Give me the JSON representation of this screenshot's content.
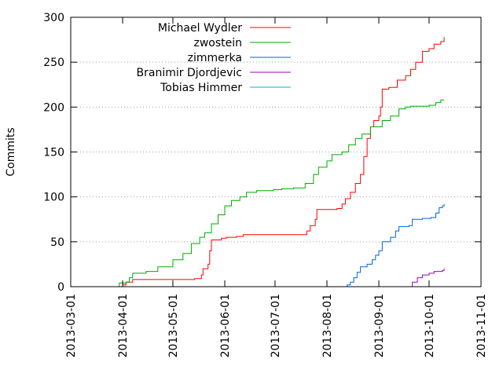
{
  "chart_data": {
    "type": "line",
    "ylabel": "Commits",
    "ylim": [
      0,
      300
    ],
    "yticks": [
      0,
      50,
      100,
      150,
      200,
      250,
      300
    ],
    "xlim": [
      "2013-03-01",
      "2013-11-01"
    ],
    "xticks": [
      "2013-03-01",
      "2013-04-01",
      "2013-05-01",
      "2013-06-01",
      "2013-07-01",
      "2013-08-01",
      "2013-09-01",
      "2013-10-01",
      "2013-11-01"
    ],
    "grid": "horizontal dotted",
    "legend_position": "top-left",
    "series": [
      {
        "name": "Michael Wydler",
        "color": "#ff0000",
        "points": [
          [
            "2013-03-31",
            0
          ],
          [
            "2013-04-01",
            2
          ],
          [
            "2013-04-03",
            5
          ],
          [
            "2013-04-07",
            8
          ],
          [
            "2013-05-02",
            8
          ],
          [
            "2013-05-14",
            9
          ],
          [
            "2013-05-18",
            13
          ],
          [
            "2013-05-19",
            20
          ],
          [
            "2013-05-22",
            25
          ],
          [
            "2013-05-23",
            40
          ],
          [
            "2013-05-24",
            52
          ],
          [
            "2013-05-30",
            54
          ],
          [
            "2013-06-02",
            55
          ],
          [
            "2013-06-08",
            56
          ],
          [
            "2013-06-12",
            58
          ],
          [
            "2013-07-18",
            58
          ],
          [
            "2013-07-20",
            62
          ],
          [
            "2013-07-22",
            68
          ],
          [
            "2013-07-25",
            75
          ],
          [
            "2013-07-26",
            86
          ],
          [
            "2013-08-07",
            87
          ],
          [
            "2013-08-10",
            92
          ],
          [
            "2013-08-12",
            98
          ],
          [
            "2013-08-15",
            105
          ],
          [
            "2013-08-18",
            115
          ],
          [
            "2013-08-21",
            125
          ],
          [
            "2013-08-23",
            145
          ],
          [
            "2013-08-25",
            165
          ],
          [
            "2013-08-27",
            178
          ],
          [
            "2013-08-29",
            185
          ],
          [
            "2013-09-01",
            190
          ],
          [
            "2013-09-02",
            200
          ],
          [
            "2013-09-03",
            220
          ],
          [
            "2013-09-07",
            222
          ],
          [
            "2013-09-12",
            230
          ],
          [
            "2013-09-17",
            235
          ],
          [
            "2013-09-20",
            242
          ],
          [
            "2013-09-23",
            250
          ],
          [
            "2013-09-27",
            262
          ],
          [
            "2013-10-01",
            265
          ],
          [
            "2013-10-04",
            270
          ],
          [
            "2013-10-08",
            273
          ],
          [
            "2013-10-10",
            278
          ]
        ]
      },
      {
        "name": "zwostein",
        "color": "#00aa00",
        "points": [
          [
            "2013-03-30",
            0
          ],
          [
            "2013-03-30",
            4
          ],
          [
            "2013-04-03",
            5
          ],
          [
            "2013-04-05",
            10
          ],
          [
            "2013-04-07",
            15
          ],
          [
            "2013-04-15",
            17
          ],
          [
            "2013-04-22",
            22
          ],
          [
            "2013-05-01",
            30
          ],
          [
            "2013-05-07",
            37
          ],
          [
            "2013-05-12",
            48
          ],
          [
            "2013-05-17",
            55
          ],
          [
            "2013-05-20",
            60
          ],
          [
            "2013-05-24",
            70
          ],
          [
            "2013-05-28",
            80
          ],
          [
            "2013-06-01",
            90
          ],
          [
            "2013-06-05",
            96
          ],
          [
            "2013-06-10",
            100
          ],
          [
            "2013-06-14",
            105
          ],
          [
            "2013-06-20",
            107
          ],
          [
            "2013-06-30",
            108
          ],
          [
            "2013-07-05",
            109
          ],
          [
            "2013-07-12",
            110
          ],
          [
            "2013-07-19",
            115
          ],
          [
            "2013-07-24",
            125
          ],
          [
            "2013-07-27",
            133
          ],
          [
            "2013-08-01",
            140
          ],
          [
            "2013-08-04",
            147
          ],
          [
            "2013-08-10",
            150
          ],
          [
            "2013-08-14",
            158
          ],
          [
            "2013-08-18",
            165
          ],
          [
            "2013-08-22",
            170
          ],
          [
            "2013-08-27",
            178
          ],
          [
            "2013-09-03",
            185
          ],
          [
            "2013-09-08",
            190
          ],
          [
            "2013-09-13",
            198
          ],
          [
            "2013-09-17",
            200
          ],
          [
            "2013-09-20",
            201
          ],
          [
            "2013-10-01",
            202
          ],
          [
            "2013-10-05",
            205
          ],
          [
            "2013-10-08",
            208
          ],
          [
            "2013-10-10",
            208
          ]
        ]
      },
      {
        "name": "zimmerka",
        "color": "#0066dd",
        "points": [
          [
            "2013-08-13",
            0
          ],
          [
            "2013-08-13",
            2
          ],
          [
            "2013-08-15",
            5
          ],
          [
            "2013-08-17",
            10
          ],
          [
            "2013-08-19",
            16
          ],
          [
            "2013-08-21",
            22
          ],
          [
            "2013-08-25",
            25
          ],
          [
            "2013-08-28",
            30
          ],
          [
            "2013-08-30",
            35
          ],
          [
            "2013-09-01",
            40
          ],
          [
            "2013-09-03",
            50
          ],
          [
            "2013-09-08",
            55
          ],
          [
            "2013-09-11",
            62
          ],
          [
            "2013-09-13",
            67
          ],
          [
            "2013-09-19",
            68
          ],
          [
            "2013-09-21",
            75
          ],
          [
            "2013-09-27",
            76
          ],
          [
            "2013-10-02",
            77
          ],
          [
            "2013-10-05",
            82
          ],
          [
            "2013-10-07",
            88
          ],
          [
            "2013-10-09",
            90
          ],
          [
            "2013-10-10",
            92
          ]
        ]
      },
      {
        "name": "Branimir Djordjevic",
        "color": "#9900cc",
        "points": [
          [
            "2013-09-21",
            0
          ],
          [
            "2013-09-21",
            5
          ],
          [
            "2013-09-24",
            10
          ],
          [
            "2013-09-27",
            13
          ],
          [
            "2013-10-01",
            15
          ],
          [
            "2013-10-04",
            17
          ],
          [
            "2013-10-09",
            18
          ],
          [
            "2013-10-10",
            20
          ]
        ]
      },
      {
        "name": "Tobias Himmer",
        "color": "#00bbcc",
        "points": [
          [
            "2013-03-31",
            0
          ],
          [
            "2013-10-10",
            0
          ]
        ]
      }
    ]
  }
}
